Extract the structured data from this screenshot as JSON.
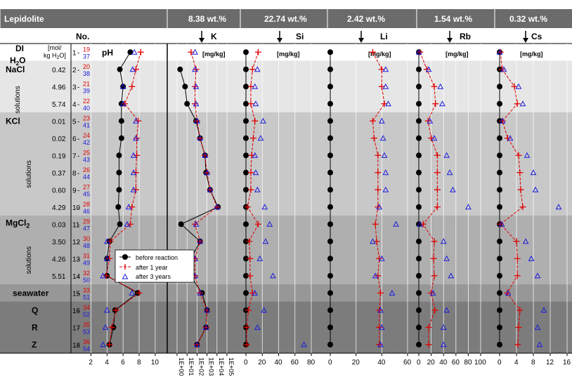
{
  "chart_data": {
    "type": "scatter",
    "header": {
      "mineral": "Lepidolite",
      "panels": [
        {
          "id": "pH",
          "grade": "",
          "label": "pH",
          "unit": ""
        },
        {
          "id": "K",
          "grade": "8.38 wt.%",
          "label": "K",
          "unit": "[mg/kg]"
        },
        {
          "id": "Si",
          "grade": "22.74 wt.%",
          "label": "Si",
          "unit": "[mg/kg]"
        },
        {
          "id": "Li",
          "grade": "2.42 wt.%",
          "label": "Li",
          "unit": "[mg/kg]"
        },
        {
          "id": "Rb",
          "grade": "1.54 wt.%",
          "label": "Rb",
          "unit": "[mg/kg]"
        },
        {
          "id": "Cs",
          "grade": "0.32 wt.%",
          "label": "Cs",
          "unit": "[mg/kg]"
        }
      ],
      "no_label": "No.",
      "conc_unit": "[mol/ kg H2O]"
    },
    "groups": [
      {
        "name": "DI H2O",
        "rows": [
          1
        ]
      },
      {
        "name": "NaCl solutions",
        "rows": [
          2,
          3,
          4
        ]
      },
      {
        "name": "KCl solutions",
        "rows": [
          5,
          6,
          7,
          8,
          9,
          10
        ]
      },
      {
        "name": "MgCl2 solutions",
        "rows": [
          11,
          12,
          13,
          14
        ]
      },
      {
        "name": "seawater",
        "rows": [
          15
        ]
      },
      {
        "name": "Q",
        "rows": [
          16
        ]
      },
      {
        "name": "R",
        "rows": [
          17
        ]
      },
      {
        "name": "Z",
        "rows": [
          18
        ]
      }
    ],
    "rows": [
      {
        "no": 1,
        "conc": "",
        "r1": "19",
        "r3": "37"
      },
      {
        "no": 2,
        "conc": "0.42",
        "r1": "20",
        "r3": "38"
      },
      {
        "no": 3,
        "conc": "4.96",
        "r1": "21",
        "r3": "39"
      },
      {
        "no": 4,
        "conc": "5.74",
        "r1": "22",
        "r3": "40"
      },
      {
        "no": 5,
        "conc": "0.01",
        "r1": "23",
        "r3": "41"
      },
      {
        "no": 6,
        "conc": "0.02",
        "r1": "24",
        "r3": "42"
      },
      {
        "no": 7,
        "conc": "0.19",
        "r1": "25",
        "r3": "43"
      },
      {
        "no": 8,
        "conc": "0.37",
        "r1": "26",
        "r3": "44"
      },
      {
        "no": 9,
        "conc": "0.60",
        "r1": "27",
        "r3": "45"
      },
      {
        "no": 10,
        "conc": "4.29",
        "r1": "28",
        "r3": "46"
      },
      {
        "no": 11,
        "conc": "0.03",
        "r1": "29",
        "r3": "47"
      },
      {
        "no": 12,
        "conc": "3.50",
        "r1": "30",
        "r3": "48"
      },
      {
        "no": 13,
        "conc": "4.26",
        "r1": "31",
        "r3": "49"
      },
      {
        "no": 14,
        "conc": "5.51",
        "r1": "32",
        "r3": "50"
      },
      {
        "no": 15,
        "conc": "",
        "r1": "33",
        "r3": "51"
      },
      {
        "no": 16,
        "conc": "",
        "r1": "34",
        "r3": "52"
      },
      {
        "no": 17,
        "conc": "",
        "r1": "35",
        "r3": "53"
      },
      {
        "no": 18,
        "conc": "",
        "r1": "36",
        "r3": "54"
      }
    ],
    "legend": {
      "before": "before reaction",
      "after1": "after 1 year",
      "after3": "after 3 years"
    },
    "axes": {
      "pH": {
        "ticks": [
          "2",
          "4",
          "6",
          "8",
          "10"
        ],
        "min": 1,
        "max": 11
      },
      "K": {
        "ticks": [
          "1E+00",
          "1E+01",
          "1E+02",
          "1E+03",
          "1E+04",
          "1E+05"
        ],
        "log": true,
        "min": -0.2,
        "max": 5.3
      },
      "Si": {
        "ticks": [
          "0",
          "20",
          "40",
          "60",
          "80"
        ],
        "min": -2,
        "max": 90
      },
      "Li": {
        "ticks": [
          "0",
          "20",
          "40",
          "60"
        ],
        "min": -2,
        "max": 65
      },
      "Rb": {
        "ticks": [
          "0",
          "20",
          "40",
          "60",
          "80",
          "100"
        ],
        "min": -2,
        "max": 110
      },
      "Cs": {
        "ticks": [
          "0",
          "4",
          "8",
          "12",
          "16"
        ],
        "min": -0.5,
        "max": 17
      }
    },
    "series": {
      "pH": {
        "before": [
          6.9,
          5.6,
          6.0,
          5.8,
          5.8,
          5.8,
          5.5,
          5.5,
          5.5,
          5.4,
          5.6,
          4.3,
          4.0,
          4.0,
          7.8,
          5.0,
          4.8,
          4.3
        ],
        "after1": [
          8.2,
          7.6,
          7.1,
          6.2,
          7.9,
          7.7,
          7.7,
          7.6,
          7.6,
          7.1,
          6.9,
          4.4,
          4.3,
          3.9,
          8.0,
          5.1,
          4.6,
          4.3
        ],
        "after3": [
          7.4,
          7.2,
          6.0,
          6.0,
          7.6,
          7.6,
          7.3,
          7.3,
          7.3,
          6.7,
          6.5,
          4.0,
          4.0,
          3.5,
          7.1,
          4.0,
          3.8,
          3.5
        ]
      },
      "K": {
        "before": [
          null,
          0.3,
          0.8,
          1.0,
          1.9,
          2.3,
          2.8,
          2.9,
          3.3,
          4.1,
          0.4,
          2.3,
          1.4,
          1.3,
          2.5,
          3.0,
          2.9,
          2.0
        ],
        "after1": [
          1.4,
          1.9,
          1.8,
          1.8,
          2.0,
          2.3,
          2.8,
          3.0,
          3.3,
          4.0,
          1.8,
          2.3,
          1.8,
          1.8,
          2.3,
          3.0,
          2.9,
          2.0
        ],
        "after3": [
          1.8,
          1.8,
          1.9,
          1.9,
          2.0,
          2.3,
          2.8,
          3.0,
          3.3,
          4.0,
          1.9,
          2.3,
          1.8,
          1.8,
          2.3,
          3.0,
          2.9,
          2.0
        ]
      },
      "Si": {
        "before": [
          0,
          0,
          0,
          0,
          0,
          0,
          0,
          0,
          0,
          0,
          0,
          0,
          0,
          0,
          0,
          0,
          0,
          0
        ],
        "after1": [
          15,
          8,
          6,
          6,
          11,
          9,
          7,
          6,
          6,
          2,
          15,
          4,
          5,
          5,
          8,
          3,
          1,
          1
        ],
        "after3": [
          null,
          14,
          11,
          12,
          21,
          18,
          11,
          12,
          14,
          23,
          29,
          24,
          17,
          33,
          11,
          22,
          14,
          71
        ]
      },
      "Li": {
        "before": [
          0,
          0,
          0,
          0,
          0,
          0,
          0,
          0,
          0,
          0,
          0,
          0,
          0,
          0,
          0,
          0,
          0,
          0
        ],
        "after1": [
          33,
          40,
          40,
          42,
          33,
          34,
          37,
          37,
          37,
          37,
          35,
          36,
          38,
          37,
          39,
          38,
          38,
          38
        ],
        "after3": [
          null,
          43,
          43,
          45,
          40,
          41,
          42,
          43,
          43,
          38,
          51,
          33,
          40,
          35,
          48,
          39,
          40,
          39
        ]
      },
      "Rb": {
        "before": [
          0,
          0,
          0,
          0,
          0,
          0,
          0,
          0,
          0,
          0,
          0,
          0,
          0,
          0,
          0,
          0,
          0,
          0
        ],
        "after1": [
          2,
          13,
          25,
          27,
          15,
          20,
          30,
          30,
          30,
          30,
          7,
          25,
          24,
          25,
          20,
          26,
          16,
          16
        ],
        "after3": [
          0,
          16,
          35,
          38,
          18,
          25,
          45,
          50,
          55,
          80,
          2,
          40,
          45,
          52,
          23,
          45,
          40,
          40
        ]
      },
      "Cs": {
        "before": [
          0,
          0,
          0,
          0,
          0,
          0,
          0,
          0,
          0,
          0,
          0,
          0,
          0,
          0,
          0,
          0,
          0,
          0
        ],
        "after1": [
          0.2,
          0.6,
          3.5,
          4.2,
          0.7,
          1.9,
          4.5,
          4.8,
          5.0,
          5.5,
          0.2,
          4.0,
          4.2,
          4.2,
          1.8,
          4.8,
          4.5,
          4.3
        ],
        "after3": [
          0,
          1.0,
          4.5,
          5.5,
          0.7,
          2.5,
          6.5,
          8.0,
          8.5,
          14.0,
          0.5,
          6.2,
          7.5,
          9.0,
          2.0,
          10.5,
          9.0,
          9.5
        ]
      }
    }
  }
}
